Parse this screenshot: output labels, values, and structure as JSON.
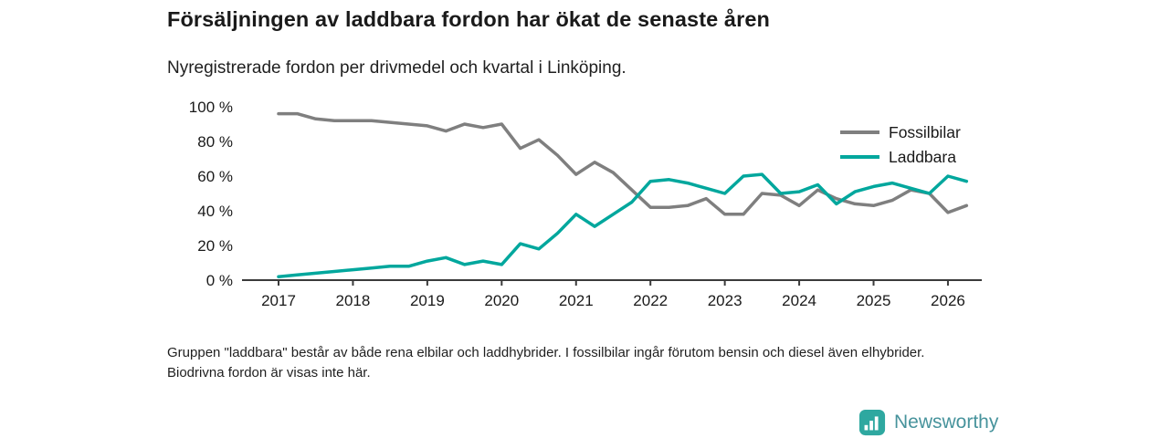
{
  "header": {
    "title": "Försäljningen av laddbara fordon har ökat de senaste åren",
    "subtitle": "Nyregistrerade fordon per drivmedel och kvartal i Linköping."
  },
  "chart_data": {
    "type": "line",
    "title": "Försäljningen av laddbara fordon har ökat de senaste åren",
    "subtitle": "Nyregistrerade fordon per drivmedel och kvartal i Linköping.",
    "xlabel": "",
    "ylabel": "",
    "ylim": [
      0,
      100
    ],
    "grid": false,
    "legend_position": "top-right",
    "axis_color": "#3b3b3b",
    "text_color": "#1a1a1a",
    "x_ticks": [
      "2017",
      "2018",
      "2019",
      "2020",
      "2021",
      "2022",
      "2023",
      "2024",
      "2025",
      "2026"
    ],
    "y_ticks": [
      {
        "value": 100,
        "label": "100 %"
      },
      {
        "value": 80,
        "label": "80 %"
      },
      {
        "value": 60,
        "label": "60 %"
      },
      {
        "value": 40,
        "label": "40 %"
      },
      {
        "value": 20,
        "label": "20 %"
      },
      {
        "value": 0,
        "label": "0 %"
      }
    ],
    "x_quarter_labels": [
      "2017 Q1",
      "2017 Q2",
      "2017 Q3",
      "2017 Q4",
      "2018 Q1",
      "2018 Q2",
      "2018 Q3",
      "2018 Q4",
      "2019 Q1",
      "2019 Q2",
      "2019 Q3",
      "2019 Q4",
      "2020 Q1",
      "2020 Q2",
      "2020 Q3",
      "2020 Q4",
      "2021 Q1",
      "2021 Q2",
      "2021 Q3",
      "2021 Q4",
      "2022 Q1",
      "2022 Q2",
      "2022 Q3",
      "2022 Q4",
      "2023 Q1",
      "2023 Q2",
      "2023 Q3",
      "2023 Q4",
      "2024 Q1",
      "2024 Q2",
      "2024 Q3",
      "2024 Q4",
      "2025 Q1",
      "2025 Q2",
      "2025 Q3",
      "2025 Q4",
      "2026 Q1",
      "2026 Q2"
    ],
    "series": [
      {
        "name": "Fossilbilar",
        "color": "#7f7f7f",
        "values": [
          96,
          96,
          93,
          92,
          92,
          92,
          91,
          90,
          89,
          86,
          90,
          88,
          90,
          76,
          81,
          72,
          61,
          68,
          62,
          52,
          42,
          42,
          43,
          47,
          38,
          38,
          50,
          49,
          43,
          52,
          47,
          44,
          43,
          46,
          52,
          50,
          39,
          43
        ]
      },
      {
        "name": "Laddbara",
        "color": "#00a79d",
        "values": [
          2,
          3,
          4,
          5,
          6,
          7,
          8,
          8,
          11,
          13,
          9,
          11,
          9,
          21,
          18,
          27,
          38,
          31,
          38,
          45,
          57,
          58,
          56,
          53,
          50,
          60,
          61,
          50,
          51,
          55,
          44,
          51,
          54,
          56,
          53,
          50,
          60,
          57
        ]
      }
    ]
  },
  "note": {
    "text": "Gruppen \"laddbara\" består av både rena elbilar och laddhybrider. I fossilbilar ingår förutom bensin och diesel även elhybrider. Biodrivna fordon är visas inte här."
  },
  "brand": {
    "name": "Newsworthy",
    "icon": "bar-chart-icon",
    "icon_color": "#2ea8a0",
    "text_color": "#47939c"
  }
}
